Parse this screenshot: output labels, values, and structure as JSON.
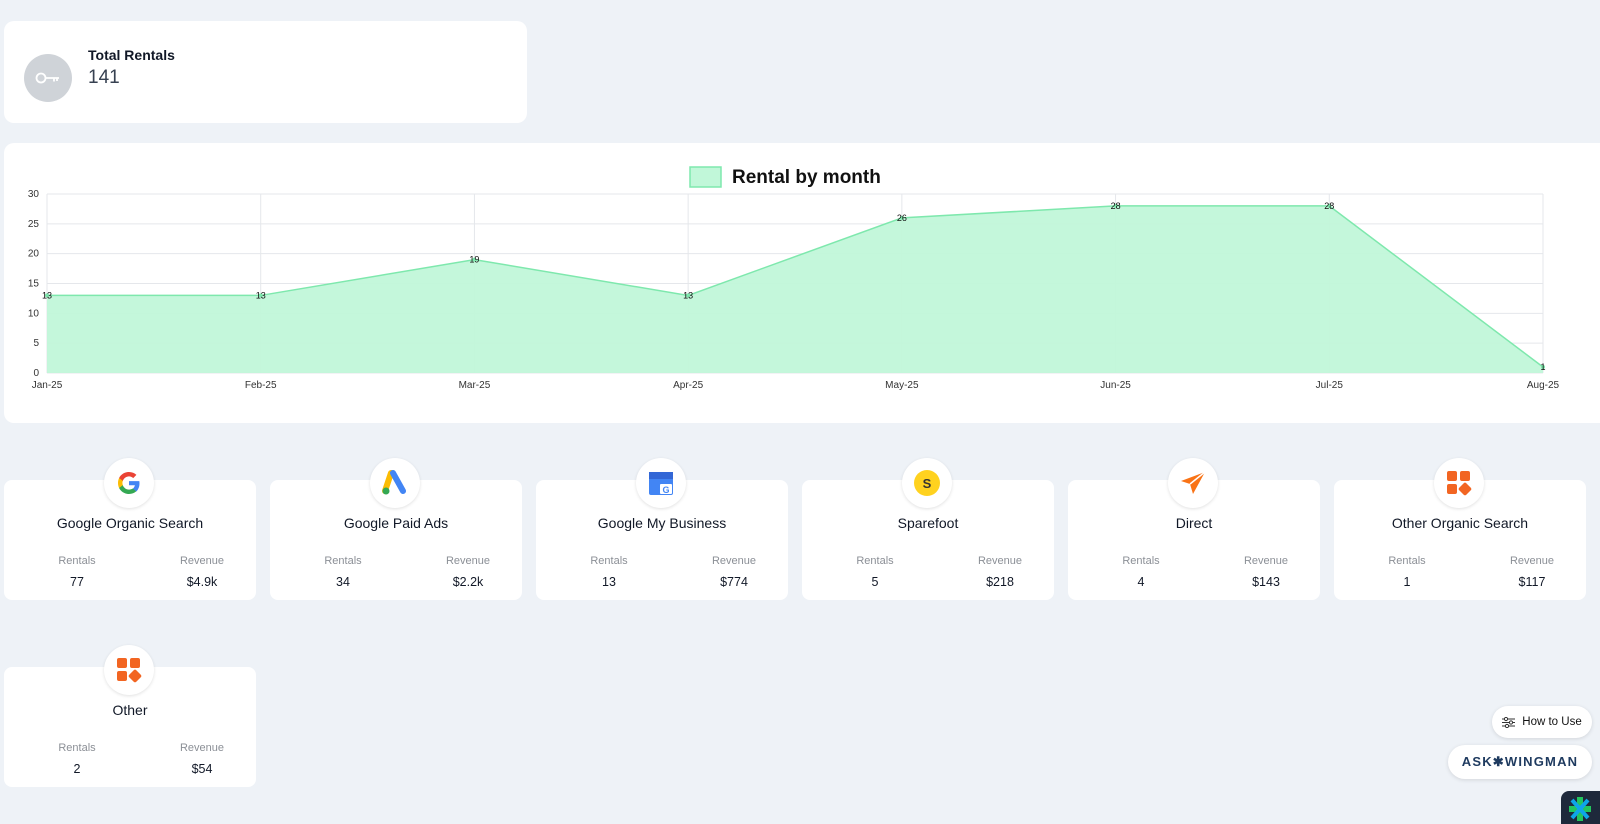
{
  "total": {
    "label": "Total Rentals",
    "value": "141"
  },
  "chart_data": {
    "type": "area",
    "title": "Rental by month",
    "legend": "top",
    "x": [
      "Jan-25",
      "Feb-25",
      "Mar-25",
      "Apr-25",
      "May-25",
      "Jun-25",
      "Jul-25",
      "Aug-25"
    ],
    "series": [
      {
        "name": "Rental by month",
        "values": [
          13,
          13,
          19,
          13,
          26,
          28,
          28,
          1
        ]
      }
    ],
    "ylim": [
      0,
      30
    ],
    "yticks": [
      0,
      5,
      10,
      15,
      20,
      25,
      30
    ],
    "grid": true,
    "colors": {
      "fill": "#c1f7d9",
      "stroke": "#7ee8ad",
      "grid": "#e5e7eb"
    }
  },
  "sources": [
    {
      "name": "Google Organic Search",
      "icon": "google-icon",
      "rentals_label": "Rentals",
      "revenue_label": "Revenue",
      "rentals": "77",
      "revenue": "$4.9k"
    },
    {
      "name": "Google Paid Ads",
      "icon": "google-ads-icon",
      "rentals_label": "Rentals",
      "revenue_label": "Revenue",
      "rentals": "34",
      "revenue": "$2.2k"
    },
    {
      "name": "Google My Business",
      "icon": "google-my-business-icon",
      "rentals_label": "Rentals",
      "revenue_label": "Revenue",
      "rentals": "13",
      "revenue": "$774"
    },
    {
      "name": "Sparefoot",
      "icon": "sparefoot-icon",
      "rentals_label": "Rentals",
      "revenue_label": "Revenue",
      "rentals": "5",
      "revenue": "$218"
    },
    {
      "name": "Direct",
      "icon": "paper-plane-icon",
      "rentals_label": "Rentals",
      "revenue_label": "Revenue",
      "rentals": "4",
      "revenue": "$143"
    },
    {
      "name": "Other Organic Search",
      "icon": "apps-grid-icon",
      "rentals_label": "Rentals",
      "revenue_label": "Revenue",
      "rentals": "1",
      "revenue": "$117"
    },
    {
      "name": "Other",
      "icon": "apps-grid-icon",
      "rentals_label": "Rentals",
      "revenue_label": "Revenue",
      "rentals": "2",
      "revenue": "$54"
    }
  ],
  "floating": {
    "howto_label": "How to Use",
    "wingman_label": "ASK✱WINGMAN"
  }
}
